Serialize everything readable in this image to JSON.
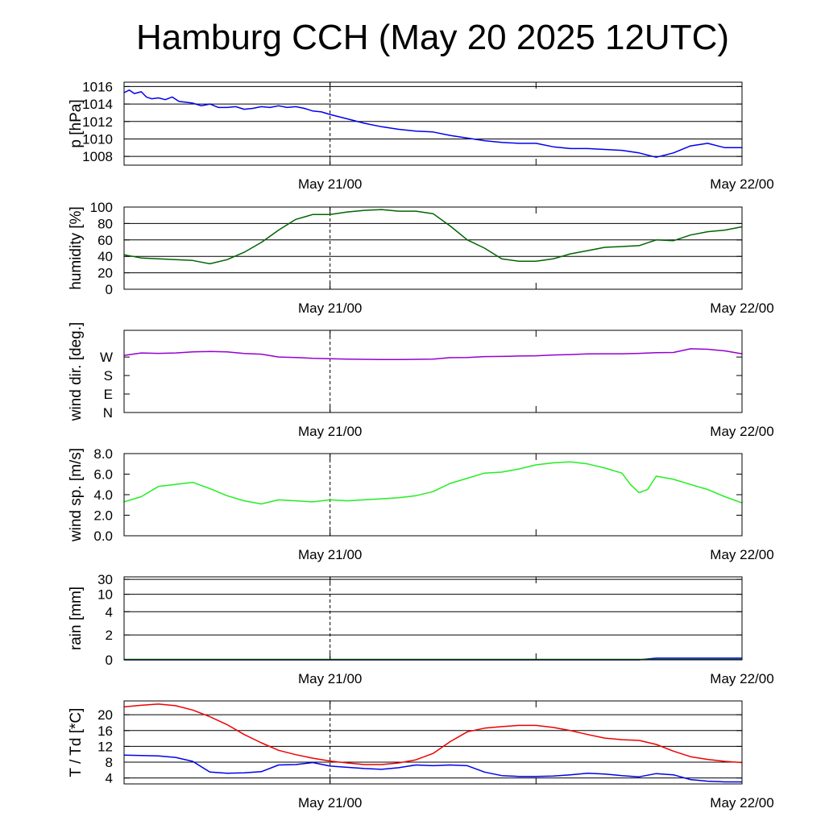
{
  "title": "Hamburg CCH (May 20 2025 12UTC)",
  "colors": {
    "axis": "#000000",
    "grid": "#000000"
  },
  "chart_data": [
    {
      "type": "line",
      "ylabel": "p [hPa]",
      "ylim": [
        1007,
        1016.5
      ],
      "yticks": [
        "1008",
        "1010",
        "1012",
        "1014",
        "1016"
      ],
      "ytick_values": [
        1008,
        1010,
        1012,
        1014,
        1016
      ],
      "grid": true,
      "xlim": [
        0,
        36
      ],
      "xtick_labels": [
        "May 21/00",
        "May 22/00"
      ],
      "xtick_hours": [
        12,
        36
      ],
      "vline_hour": 12,
      "series": [
        {
          "color": "#0000ee",
          "x": [
            0,
            0.3,
            0.6,
            1,
            1.3,
            1.6,
            2,
            2.4,
            2.8,
            3.2,
            3.6,
            4,
            4.5,
            5,
            5.5,
            6,
            6.5,
            7,
            7.5,
            8,
            8.5,
            9,
            9.5,
            10,
            10.5,
            11,
            11.5,
            12,
            13,
            14,
            15,
            16,
            17,
            18,
            19,
            20,
            21,
            22,
            23,
            24,
            25,
            26,
            27,
            28,
            29,
            30,
            31,
            32,
            33,
            34,
            35,
            36
          ],
          "y": [
            1015.3,
            1015.6,
            1015.2,
            1015.4,
            1014.8,
            1014.6,
            1014.7,
            1014.5,
            1014.8,
            1014.3,
            1014.2,
            1014.1,
            1013.8,
            1014.0,
            1013.6,
            1013.6,
            1013.7,
            1013.4,
            1013.5,
            1013.7,
            1013.6,
            1013.8,
            1013.6,
            1013.7,
            1013.5,
            1013.2,
            1013.1,
            1012.8,
            1012.3,
            1011.8,
            1011.4,
            1011.1,
            1010.9,
            1010.8,
            1010.4,
            1010.1,
            1009.8,
            1009.6,
            1009.5,
            1009.5,
            1009.1,
            1008.9,
            1008.9,
            1008.8,
            1008.7,
            1008.4,
            1007.9,
            1008.4,
            1009.2,
            1009.5,
            1009.0,
            1009.0
          ]
        }
      ]
    },
    {
      "type": "line",
      "ylabel": "humidity [%]",
      "ylim": [
        0,
        100
      ],
      "yticks": [
        "0",
        "20",
        "40",
        "60",
        "80",
        "100"
      ],
      "ytick_values": [
        0,
        20,
        40,
        60,
        80,
        100
      ],
      "grid": true,
      "xlim": [
        0,
        36
      ],
      "xtick_labels": [
        "May 21/00",
        "May 22/00"
      ],
      "xtick_hours": [
        12,
        36
      ],
      "vline_hour": 12,
      "series": [
        {
          "color": "#006400",
          "x": [
            0,
            1,
            2,
            3,
            4,
            5,
            6,
            7,
            8,
            9,
            10,
            11,
            12,
            13,
            14,
            15,
            16,
            17,
            18,
            19,
            20,
            21,
            22,
            23,
            24,
            25,
            26,
            27,
            28,
            29,
            30,
            31,
            32,
            33,
            34,
            35,
            36
          ],
          "y": [
            42,
            38,
            37,
            36,
            35,
            31,
            36,
            45,
            57,
            72,
            85,
            91,
            91,
            94,
            96,
            97,
            95,
            95,
            92,
            77,
            60,
            50,
            37,
            34,
            34,
            37,
            43,
            47,
            51,
            52,
            53,
            60,
            59,
            66,
            70,
            72,
            76
          ]
        }
      ]
    },
    {
      "type": "line",
      "ylabel": "wind dir. [deg.]",
      "ylim": [
        0,
        400
      ],
      "yticks": [
        "N",
        "E",
        "S",
        "W"
      ],
      "ytick_values": [
        0,
        90,
        180,
        270
      ],
      "grid": false,
      "xlim": [
        0,
        36
      ],
      "xtick_labels": [
        "May 21/00",
        "May 22/00"
      ],
      "xtick_hours": [
        12,
        36
      ],
      "vline_hour": 12,
      "series": [
        {
          "color": "#9400d3",
          "x": [
            0,
            1,
            2,
            3,
            4,
            5,
            6,
            7,
            8,
            9,
            10,
            11,
            12,
            13,
            14,
            15,
            16,
            17,
            18,
            19,
            20,
            21,
            22,
            23,
            24,
            25,
            26,
            27,
            28,
            29,
            30,
            31,
            32,
            33,
            34,
            35,
            36
          ],
          "y": [
            278,
            290,
            288,
            290,
            295,
            297,
            295,
            287,
            284,
            270,
            268,
            264,
            262,
            260,
            259,
            258,
            258,
            259,
            260,
            267,
            268,
            272,
            273,
            275,
            276,
            280,
            282,
            285,
            286,
            286,
            288,
            291,
            292,
            310,
            308,
            300,
            286
          ]
        }
      ]
    },
    {
      "type": "line",
      "ylabel": "wind sp. [m/s]",
      "ylim": [
        0,
        8
      ],
      "yticks": [
        "0.0",
        "2.0",
        "4.0",
        "6.0",
        "8.0"
      ],
      "ytick_values": [
        0,
        2,
        4,
        6,
        8
      ],
      "grid": false,
      "xlim": [
        0,
        36
      ],
      "xtick_labels": [
        "May 21/00",
        "May 22/00"
      ],
      "xtick_hours": [
        12,
        36
      ],
      "vline_hour": 12,
      "series": [
        {
          "color": "#22ee22",
          "x": [
            0,
            1,
            2,
            3,
            4,
            5,
            6,
            7,
            8,
            9,
            10,
            11,
            12,
            13,
            14,
            15,
            16,
            17,
            18,
            19,
            20,
            21,
            22,
            23,
            24,
            25,
            26,
            27,
            28,
            29,
            29.5,
            30,
            30.5,
            31,
            32,
            33,
            34,
            35,
            36
          ],
          "y": [
            3.3,
            3.8,
            4.8,
            5.0,
            5.2,
            4.6,
            3.9,
            3.4,
            3.1,
            3.5,
            3.4,
            3.3,
            3.5,
            3.4,
            3.5,
            3.6,
            3.7,
            3.9,
            4.3,
            5.1,
            5.6,
            6.1,
            6.2,
            6.5,
            6.9,
            7.1,
            7.2,
            7.0,
            6.6,
            6.1,
            5.0,
            4.2,
            4.5,
            5.8,
            5.5,
            5.0,
            4.5,
            3.8,
            3.2
          ]
        }
      ]
    },
    {
      "type": "line",
      "ylabel": "rain [mm]",
      "ylim": [
        0,
        100
      ],
      "yticks": [
        "0",
        "2",
        "4",
        "10",
        "30"
      ],
      "ytick_values": [
        0,
        30,
        58,
        79,
        97
      ],
      "grid": true,
      "xlim": [
        0,
        36
      ],
      "xtick_labels": [
        "May 21/00",
        "May 22/00"
      ],
      "xtick_hours": [
        12,
        36
      ],
      "vline_hour": 12,
      "series": [
        {
          "color": "#0000ee",
          "x": [
            0,
            30,
            31,
            36
          ],
          "y": [
            0,
            0,
            2,
            2
          ]
        },
        {
          "color": "#006400",
          "x": [
            0,
            36
          ],
          "y": [
            0.5,
            0.5
          ]
        }
      ]
    },
    {
      "type": "line",
      "ylabel": "T / Td [*C]",
      "ylim": [
        2.5,
        23.5
      ],
      "yticks": [
        "4",
        "8",
        "12",
        "16",
        "20"
      ],
      "ytick_values": [
        4,
        8,
        12,
        16,
        20
      ],
      "grid": true,
      "xlim": [
        0,
        36
      ],
      "xtick_labels": [
        "May 21/00",
        "May 22/00"
      ],
      "xtick_hours": [
        12,
        36
      ],
      "vline_hour": 12,
      "series": [
        {
          "color": "#ee0000",
          "x": [
            0,
            1,
            2,
            3,
            4,
            5,
            6,
            7,
            8,
            9,
            10,
            11,
            12,
            13,
            14,
            15,
            16,
            17,
            18,
            19,
            20,
            21,
            22,
            23,
            24,
            25,
            26,
            27,
            28,
            29,
            30,
            31,
            32,
            33,
            34,
            35,
            36
          ],
          "y": [
            22.0,
            22.4,
            22.7,
            22.3,
            21.2,
            19.5,
            17.5,
            15.0,
            12.9,
            11.0,
            9.9,
            9.0,
            8.3,
            7.8,
            7.4,
            7.4,
            7.8,
            8.6,
            10.2,
            13.2,
            15.7,
            16.6,
            17.0,
            17.3,
            17.3,
            16.8,
            16.0,
            15.0,
            14.1,
            13.7,
            13.5,
            12.5,
            10.8,
            9.4,
            8.7,
            8.2,
            7.9
          ]
        },
        {
          "color": "#0000ee",
          "x": [
            0,
            1,
            2,
            3,
            4,
            5,
            6,
            7,
            8,
            9,
            10,
            11,
            12,
            13,
            14,
            15,
            16,
            17,
            18,
            19,
            20,
            21,
            22,
            23,
            24,
            25,
            26,
            27,
            28,
            29,
            30,
            31,
            32,
            33,
            34,
            35,
            36
          ],
          "y": [
            9.8,
            9.7,
            9.6,
            9.2,
            8.2,
            5.5,
            5.2,
            5.3,
            5.6,
            7.3,
            7.4,
            7.9,
            7.0,
            6.7,
            6.4,
            6.2,
            6.6,
            7.3,
            7.1,
            7.3,
            7.1,
            5.5,
            4.6,
            4.4,
            4.4,
            4.5,
            4.8,
            5.2,
            5.0,
            4.6,
            4.3,
            5.1,
            4.8,
            3.6,
            3.2,
            3.0,
            3.0
          ]
        }
      ]
    }
  ]
}
